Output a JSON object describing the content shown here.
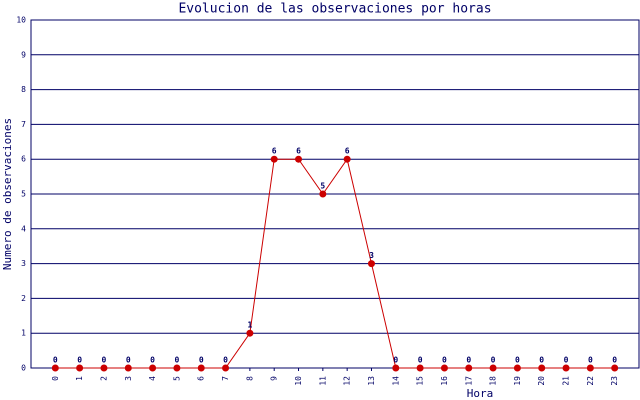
{
  "chart_data": {
    "type": "line",
    "title": "Evolucion de las observaciones por horas",
    "x_label": "Hora",
    "y_label": "Numero de observaciones",
    "categories": [
      "0",
      "1",
      "2",
      "3",
      "4",
      "5",
      "6",
      "7",
      "8",
      "9",
      "10",
      "11",
      "12",
      "13",
      "14",
      "15",
      "16",
      "17",
      "18",
      "19",
      "20",
      "21",
      "22",
      "23"
    ],
    "values": [
      0,
      0,
      0,
      0,
      0,
      0,
      0,
      0,
      1,
      6,
      6,
      5,
      6,
      3,
      0,
      0,
      0,
      0,
      0,
      0,
      0,
      0,
      0,
      0
    ],
    "color": "#cc0000",
    "ylim": [
      0,
      10
    ],
    "yticks": [
      0,
      1,
      2,
      3,
      4,
      5,
      6,
      7,
      8,
      9,
      10
    ],
    "grid": true
  }
}
